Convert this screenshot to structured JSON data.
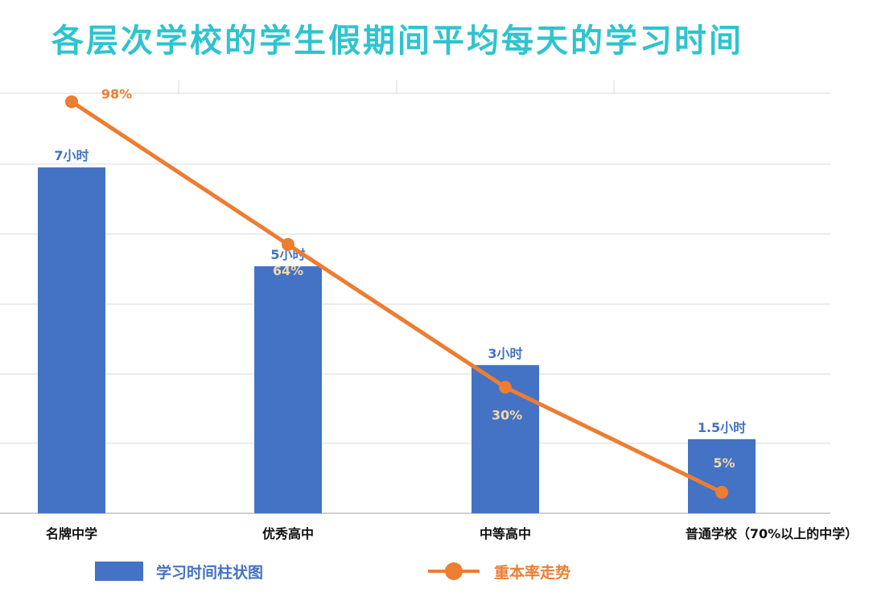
{
  "title": "各层次学校的学生假期间平均每天的学习时间",
  "chart_data": {
    "type": "bar",
    "categories": [
      "名牌中学",
      "优秀高中",
      "中等高中",
      "普通学校（70%以上的中学）"
    ],
    "series": [
      {
        "name": "学习时间柱状图",
        "type": "bar",
        "values": [
          7,
          5,
          3,
          1.5
        ],
        "labels": [
          "7小时",
          "5小时",
          "3小时",
          "1.5小时"
        ],
        "color": "#4472c4"
      },
      {
        "name": "重本率走势",
        "type": "line",
        "values": [
          98,
          64,
          30,
          5
        ],
        "labels": [
          "98%",
          "64%",
          "30%",
          "5%"
        ],
        "color": "#ed7d31"
      }
    ],
    "ylim_bar": [
      0,
      8.5
    ],
    "ylim_line": [
      0,
      100
    ],
    "grid": true,
    "legend_position": "bottom"
  },
  "colors": {
    "title": "#2ec4cf",
    "bar": "#4472c4",
    "line": "#ed7d31",
    "line_label_inside": "#f2d9a6",
    "grid": "#d9d9d9"
  },
  "legend": {
    "bar_label": "学习时间柱状图",
    "line_label": "重本率走势"
  }
}
